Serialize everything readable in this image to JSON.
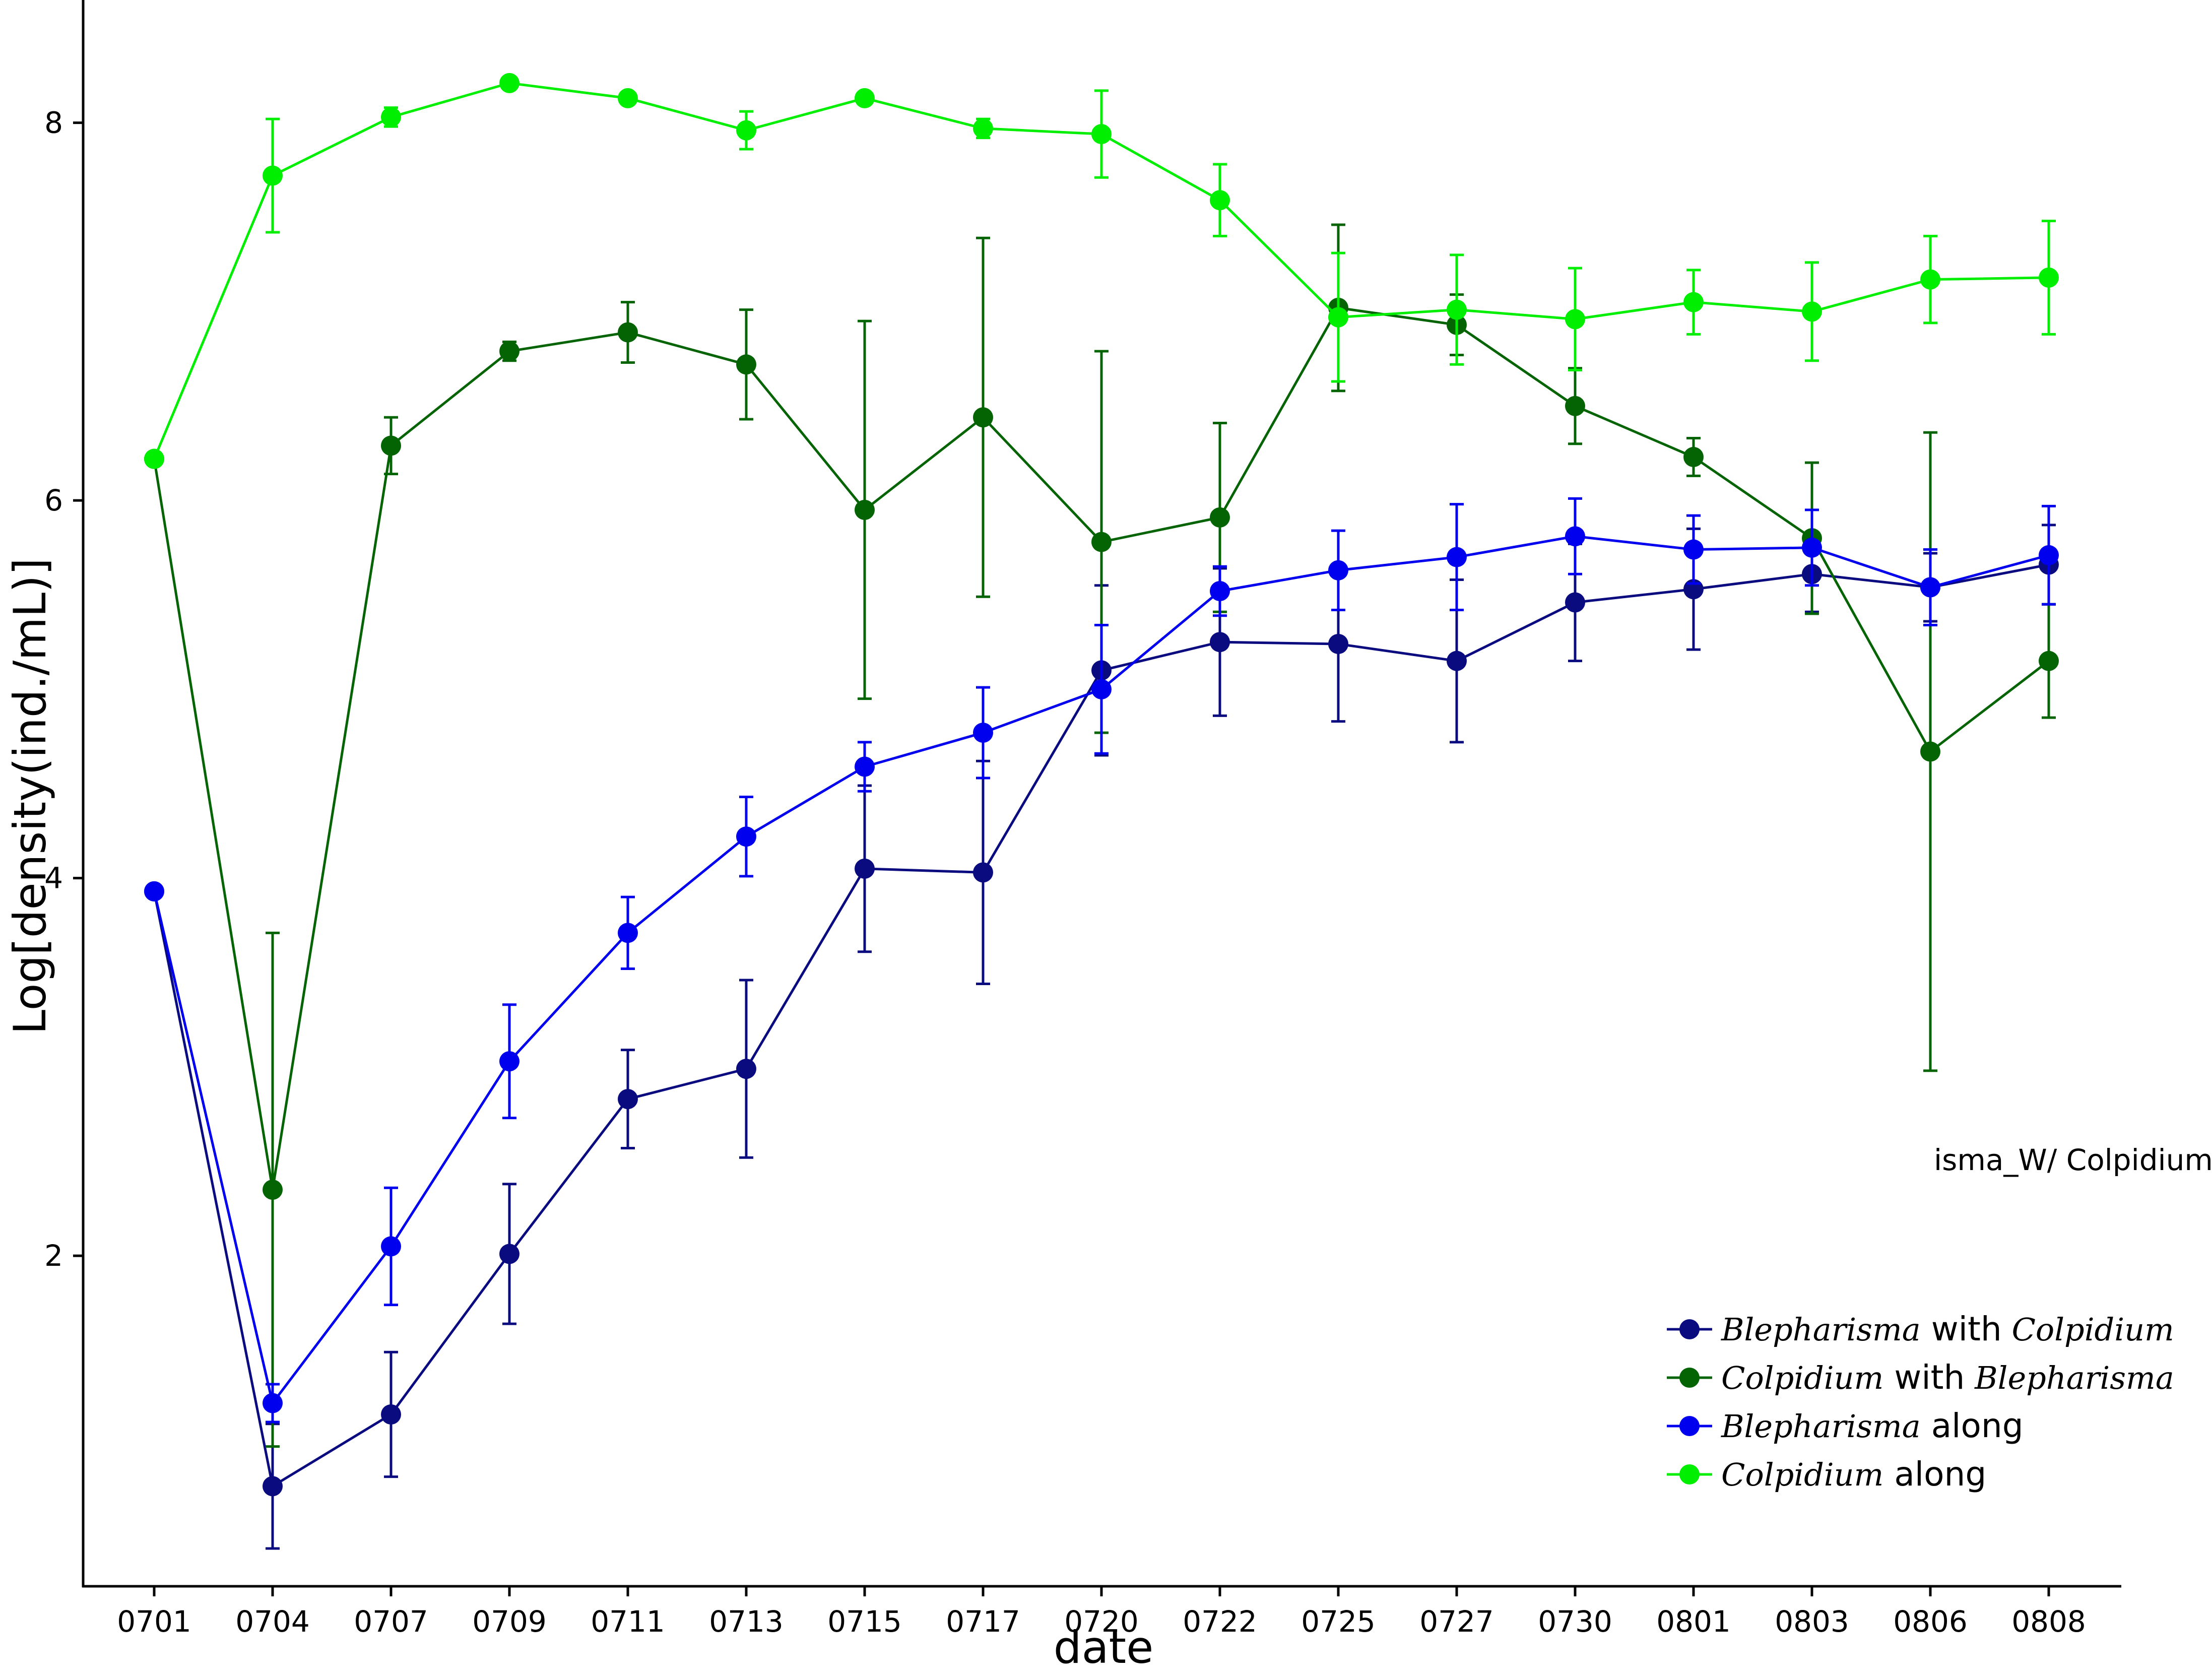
{
  "chart_data": {
    "type": "line",
    "title": "",
    "xlabel": "date",
    "ylabel": "Log[density(ind./mL)]",
    "annotation": "isma_W/ Colpidium",
    "categories": [
      "0701",
      "0704",
      "0707",
      "0709",
      "0711",
      "0713",
      "0715",
      "0717",
      "0720",
      "0722",
      "0725",
      "0727",
      "0730",
      "0801",
      "0803",
      "0806",
      "0808"
    ],
    "ylim": [
      0.25,
      8.65
    ],
    "yticks": [
      2,
      4,
      6,
      8
    ],
    "ytick_labels": [
      "2",
      "4",
      "6",
      "8"
    ],
    "grid": false,
    "legend_position": "bottom-right",
    "series": [
      {
        "name": "Blepharisma with Colpidium",
        "legend_italic": "Blepharisma",
        "legend_suffix": "with",
        "legend_italic2": "Colpidium",
        "color": "#0b0b80",
        "values": [
          3.93,
          0.78,
          1.16,
          2.01,
          2.83,
          2.99,
          4.05,
          4.03,
          5.1,
          5.25,
          5.24,
          5.15,
          5.46,
          5.53,
          5.61,
          5.54,
          5.66
        ],
        "err": [
          0,
          0.33,
          0.33,
          0.37,
          0.26,
          0.47,
          0.44,
          0.59,
          0.45,
          0.39,
          0.41,
          0.43,
          0.31,
          0.32,
          0.2,
          0.18,
          0.21
        ]
      },
      {
        "name": "Colpidium with Blepharisma",
        "legend_italic": "Colpidium",
        "legend_suffix": "with",
        "legend_italic2": "Blepharisma",
        "color": "#046404",
        "values": [
          6.22,
          2.35,
          6.29,
          6.79,
          6.89,
          6.72,
          5.95,
          6.44,
          5.78,
          5.91,
          7.02,
          6.93,
          6.5,
          6.23,
          5.8,
          4.67,
          5.15
        ],
        "err": [
          0,
          1.36,
          0.15,
          0.05,
          0.16,
          0.29,
          1.0,
          0.95,
          1.01,
          0.5,
          0.44,
          0.16,
          0.2,
          0.1,
          0.4,
          1.69,
          0.3
        ]
      },
      {
        "name": "Blepharisma along",
        "legend_italic": "Blepharisma",
        "legend_suffix": "along",
        "legend_italic2": "",
        "color": "#0000ee",
        "values": [
          3.93,
          1.22,
          2.05,
          3.03,
          3.71,
          4.22,
          4.59,
          4.77,
          5.0,
          5.52,
          5.63,
          5.7,
          5.81,
          5.74,
          5.75,
          5.54,
          5.71
        ],
        "err": [
          0,
          0.1,
          0.31,
          0.3,
          0.19,
          0.21,
          0.13,
          0.24,
          0.34,
          0.13,
          0.21,
          0.28,
          0.2,
          0.18,
          0.2,
          0.2,
          0.26
        ]
      },
      {
        "name": "Colpidium along",
        "legend_italic": "Colpidium",
        "legend_suffix": "along",
        "legend_italic2": "",
        "color": "#00ee00",
        "values": [
          6.22,
          7.72,
          8.03,
          8.21,
          8.13,
          7.96,
          8.13,
          7.97,
          7.94,
          7.59,
          6.97,
          7.01,
          6.96,
          7.05,
          7.0,
          7.17,
          7.18
        ],
        "err": [
          0,
          0.3,
          0.05,
          0.0,
          0.0,
          0.1,
          0.0,
          0.05,
          0.23,
          0.19,
          0.34,
          0.29,
          0.27,
          0.17,
          0.26,
          0.23,
          0.3
        ]
      }
    ]
  }
}
